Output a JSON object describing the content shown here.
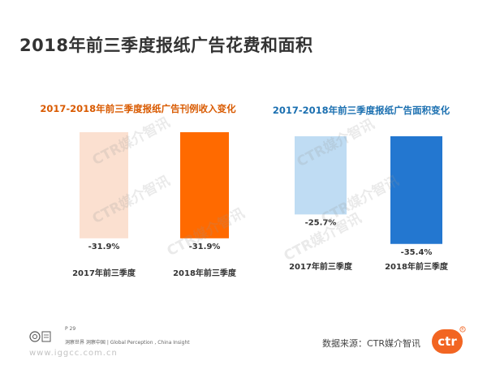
{
  "page": {
    "title": "2018年前三季度报纸广告花费和面积"
  },
  "watermark_text": "CTR媒介智讯",
  "chart_data": [
    {
      "type": "bar",
      "title": "2017-2018年前三季度报纸广告刊例收入变化",
      "title_color": "#d95a00",
      "categories": [
        "2017年前三季度",
        "2018年前三季度"
      ],
      "values": [
        -31.9,
        -31.9
      ],
      "value_labels": [
        "-31.9%",
        "-31.9%"
      ],
      "colors": [
        "#fbe0d0",
        "#ff6a00"
      ],
      "ylim": [
        -40,
        0
      ],
      "grid": false,
      "legend": "none"
    },
    {
      "type": "bar",
      "title": "2017-2018年前三季度报纸广告面积变化",
      "title_color": "#1a6fb0",
      "categories": [
        "2017年前三季度",
        "2018年前三季度"
      ],
      "values": [
        -25.7,
        -35.4
      ],
      "value_labels": [
        "-25.7%",
        "-35.4%"
      ],
      "colors": [
        "#bfdcf3",
        "#2377d0"
      ],
      "ylim": [
        -40,
        0
      ],
      "grid": false,
      "legend": "none"
    }
  ],
  "footer": {
    "page_number": "P 29",
    "tagline": "洞察世界  洞察中国 | Global Perception , China Insight",
    "website": "www.iggcc.com.cn",
    "source": "数据来源：CTR媒介智讯",
    "logo_text": "ctr"
  },
  "colors": {
    "brand_orange": "#f26522"
  }
}
